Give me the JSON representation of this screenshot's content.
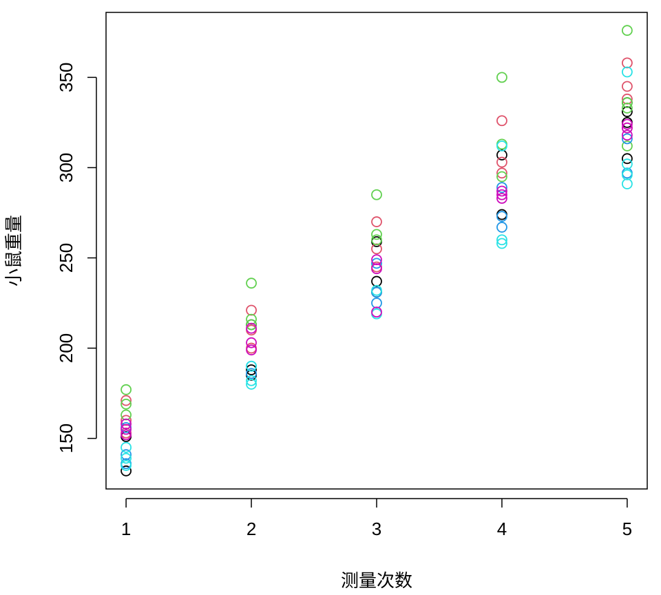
{
  "chart_data": {
    "type": "scatter",
    "x_label": "测量次数",
    "y_label": "小鼠重量",
    "xlim": [
      0.84,
      5.16
    ],
    "ylim": [
      122,
      386
    ],
    "xticks": [
      1,
      2,
      3,
      4,
      5
    ],
    "yticks": [
      150,
      200,
      250,
      300,
      350
    ],
    "series": [
      {
        "color": "#000000",
        "x": [
          1,
          1,
          2,
          2,
          2,
          3,
          3,
          3,
          4,
          4,
          5,
          5,
          5,
          5
        ],
        "values": [
          132,
          151,
          185,
          188,
          213,
          237,
          231,
          259,
          307,
          274,
          305,
          331,
          336,
          325
        ]
      },
      {
        "color": "#DF536B",
        "x": [
          1,
          1,
          1,
          2,
          2,
          2,
          3,
          3,
          3,
          4,
          4,
          4,
          5,
          5,
          5,
          5
        ],
        "values": [
          171,
          160,
          153,
          221,
          200,
          210,
          270,
          255,
          245,
          326,
          303,
          297,
          358,
          345,
          338,
          322
        ]
      },
      {
        "color": "#61D04F",
        "x": [
          1,
          1,
          1,
          2,
          2,
          2,
          3,
          3,
          3,
          4,
          4,
          4,
          5,
          5,
          5,
          5
        ],
        "values": [
          177,
          169,
          163,
          236,
          216,
          213,
          285,
          263,
          260,
          350,
          313,
          295,
          376,
          336,
          333,
          312
        ]
      },
      {
        "color": "#2297E6",
        "x": [
          1,
          1,
          1,
          2,
          2,
          3,
          3,
          3,
          4,
          4,
          4,
          5,
          5
        ],
        "values": [
          156,
          141,
          136,
          190,
          186,
          247,
          231,
          225,
          289,
          273,
          267,
          316,
          297
        ]
      },
      {
        "color": "#28E2E5",
        "x": [
          1,
          1,
          1,
          2,
          2,
          2,
          3,
          3,
          4,
          4,
          4,
          5,
          5,
          5,
          5
        ],
        "values": [
          145,
          139,
          135,
          180,
          182,
          190,
          219,
          232,
          312,
          260,
          258,
          353,
          302,
          291,
          296
        ]
      },
      {
        "color": "#CD0BBC",
        "x": [
          1,
          1,
          1,
          2,
          2,
          2,
          3,
          3,
          3,
          4,
          4,
          4,
          5,
          5,
          5
        ],
        "values": [
          152,
          155,
          158,
          199,
          203,
          211,
          244,
          249,
          220,
          285,
          283,
          287,
          322,
          324,
          318
        ]
      }
    ]
  }
}
